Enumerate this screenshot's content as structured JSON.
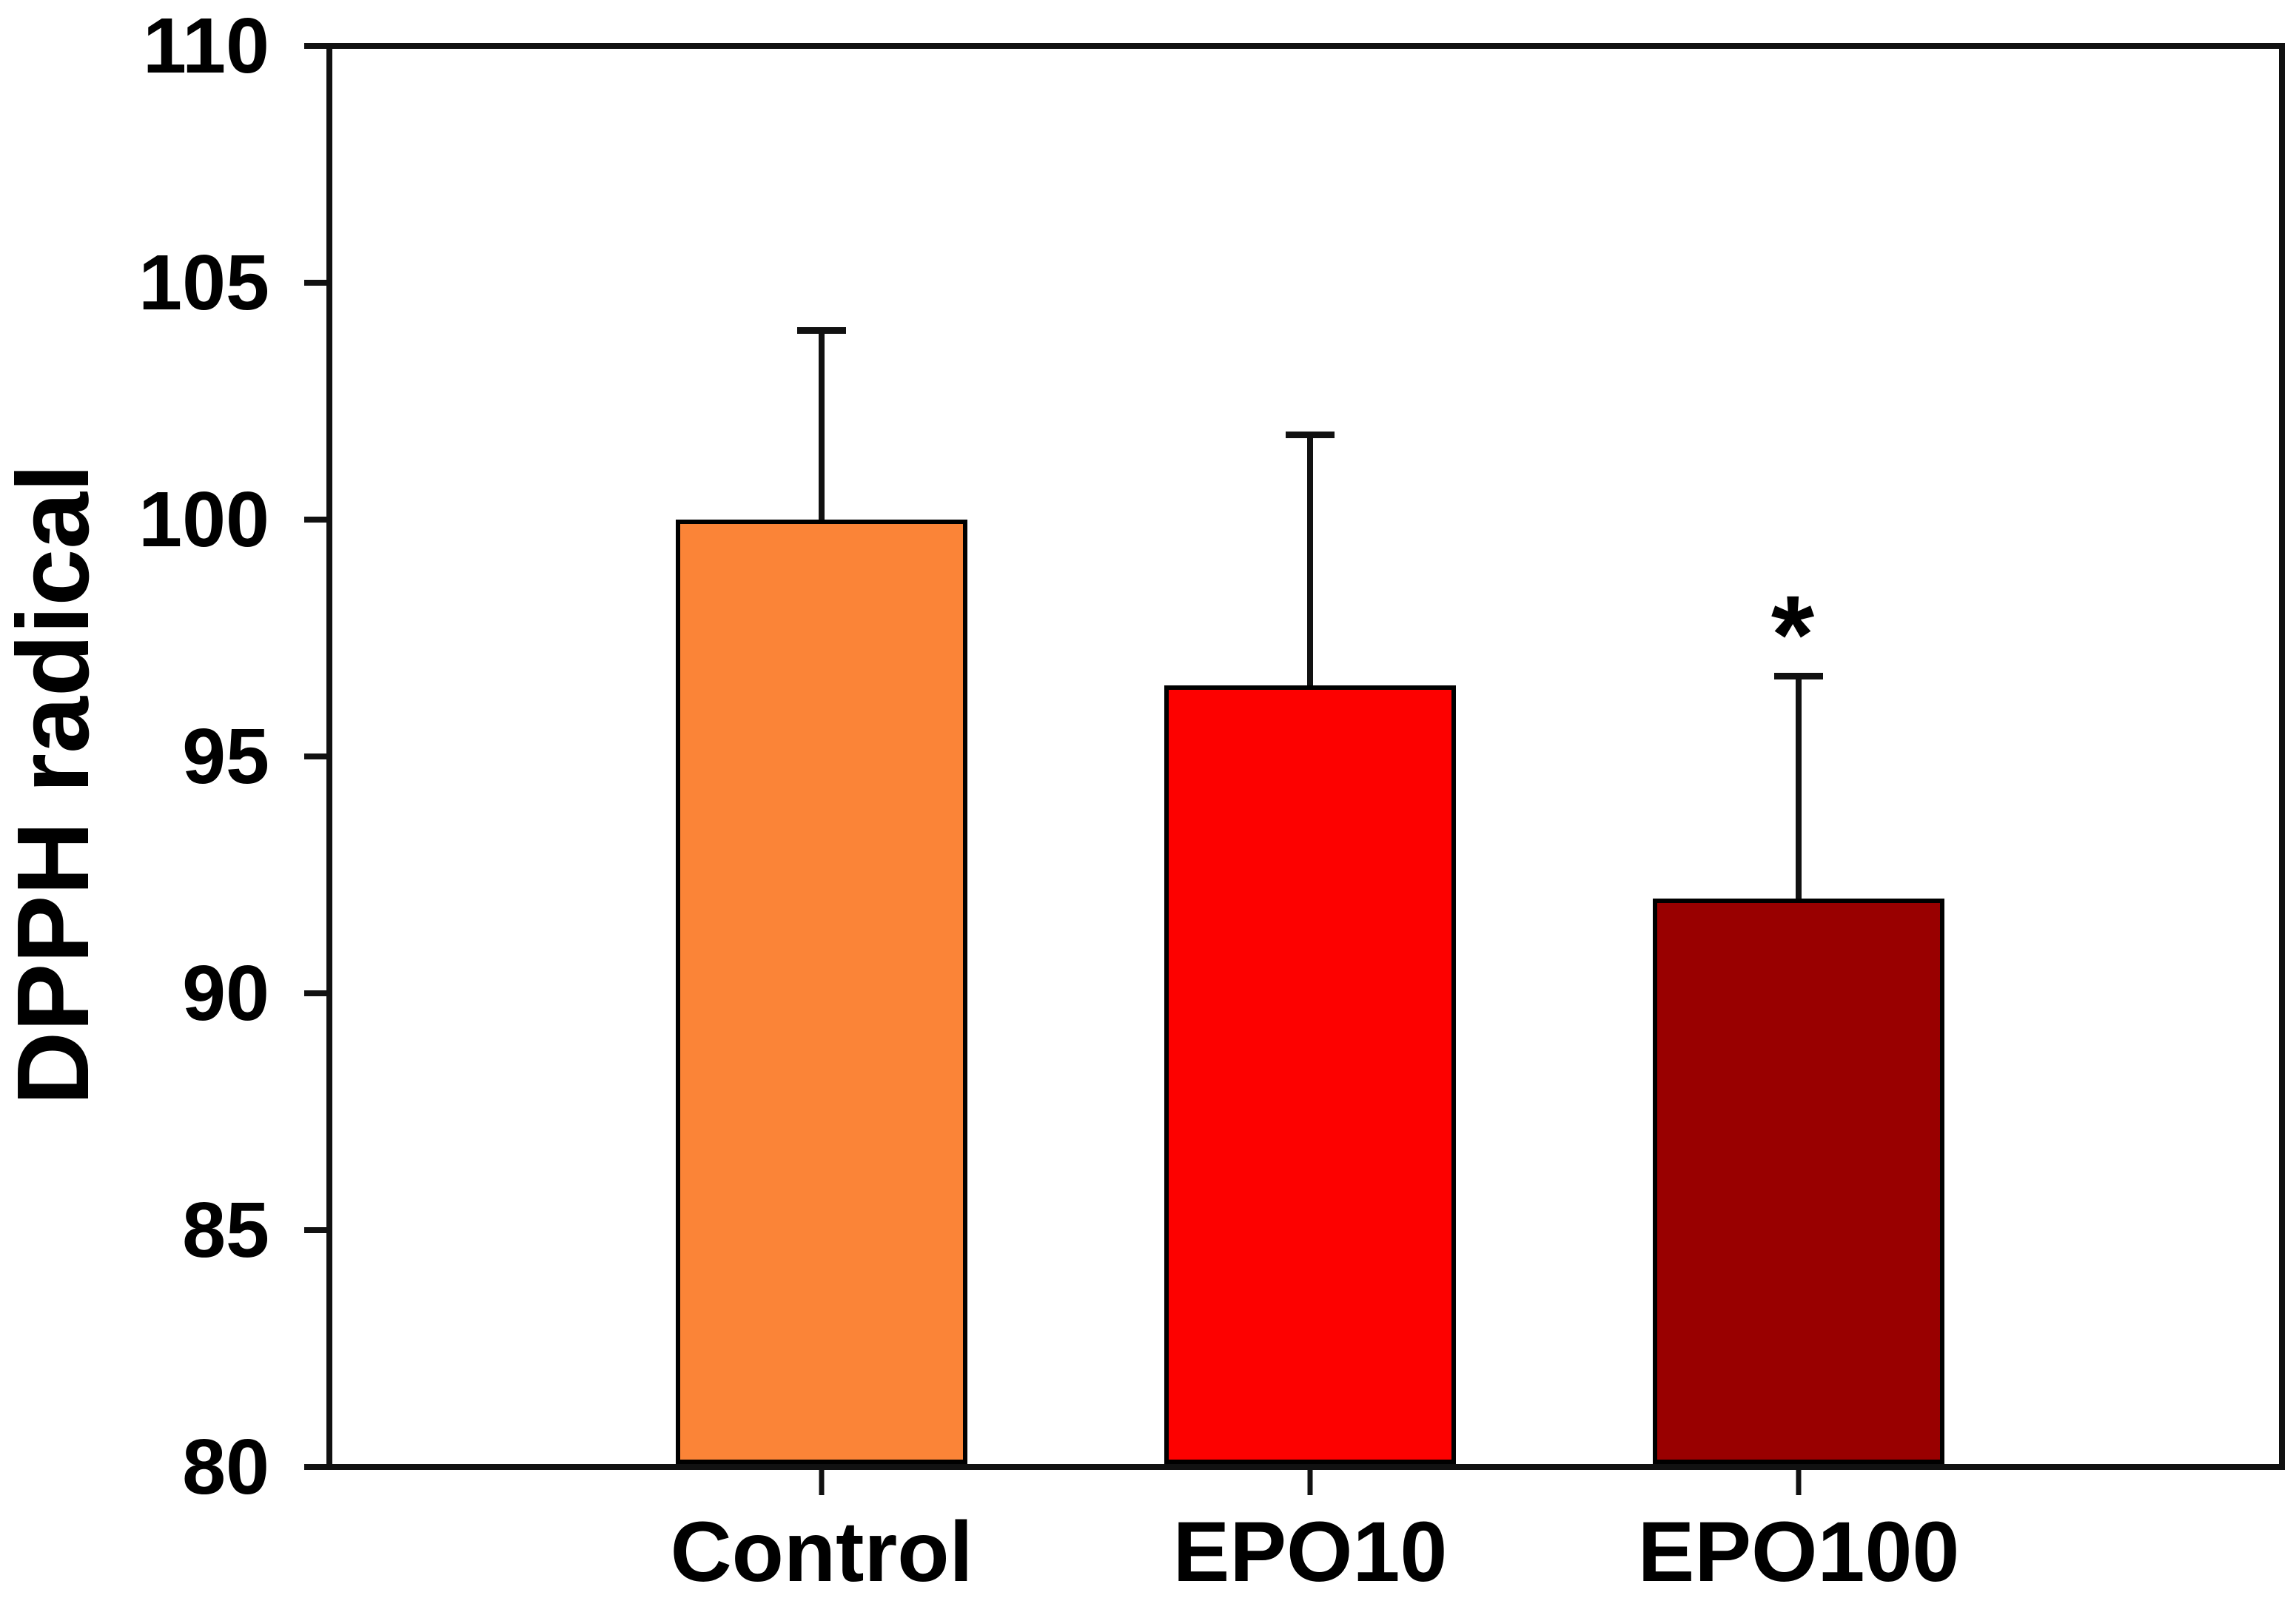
{
  "figure": {
    "background_color": "#ffffff",
    "axis_color": "#111111",
    "text_color": "#000000"
  },
  "chart_data": {
    "type": "bar",
    "title": "",
    "categories": [
      "Control",
      "EPO10",
      "EPO100"
    ],
    "values": [
      100.0,
      96.5,
      92.0
    ],
    "errors_plus": [
      4.0,
      5.3,
      4.7
    ],
    "bar_colors": [
      "#FB8437",
      "#FD0100",
      "#990000"
    ],
    "bar_border_color": "#000000",
    "error_bar_color": "#111111",
    "xlabel": "",
    "ylabel": "DPPH radical",
    "ylim": [
      80,
      110
    ],
    "yticks": [
      80,
      85,
      90,
      95,
      100,
      105,
      110
    ],
    "grid": false,
    "legend": "none",
    "frame": "full-box",
    "annotations": [
      {
        "symbol": "*",
        "category": "EPO100",
        "position": "above-error-bar"
      }
    ]
  }
}
